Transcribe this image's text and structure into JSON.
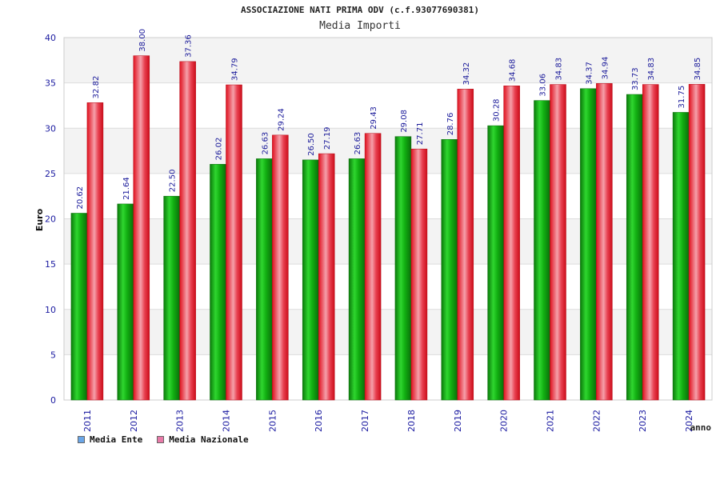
{
  "chart_data": {
    "type": "bar",
    "title": "ASSOCIAZIONE NATI PRIMA ODV (c.f.93077690381)",
    "subtitle": "Media Importi",
    "ylabel": "Euro",
    "xlabel": "anno",
    "ylim": [
      0,
      40
    ],
    "yticks": [
      0,
      5,
      10,
      15,
      20,
      25,
      30,
      35,
      40
    ],
    "categories": [
      "2011",
      "2012",
      "2013",
      "2014",
      "2015",
      "2016",
      "2017",
      "2018",
      "2019",
      "2020",
      "2021",
      "2022",
      "2023",
      "2024"
    ],
    "series": [
      {
        "name": "Media Ente",
        "color": "#19b319",
        "legend_color": "#6aa6e8",
        "values": [
          20.62,
          21.64,
          22.5,
          26.02,
          26.63,
          26.5,
          26.63,
          29.08,
          28.76,
          30.28,
          33.06,
          34.37,
          33.73,
          31.75
        ],
        "labels": [
          "20.62",
          "21.64",
          "22.50",
          "26.02",
          "26.63",
          "26.50",
          "26.63",
          "29.08",
          "28.76",
          "30.28",
          "33.06",
          "34.37",
          "33.73",
          "31.75"
        ]
      },
      {
        "name": "Media Nazionale",
        "color": "#e8192a",
        "legend_color": "#e87aa8",
        "values": [
          32.82,
          38.0,
          37.36,
          34.79,
          29.24,
          27.19,
          29.43,
          27.71,
          34.32,
          34.68,
          34.83,
          34.94,
          34.83,
          34.85
        ],
        "labels": [
          "32.82",
          "38.00",
          "37.36",
          "34.79",
          "29.24",
          "27.19",
          "29.43",
          "27.71",
          "34.32",
          "34.68",
          "34.83",
          "34.94",
          "34.83",
          "34.85"
        ]
      }
    ],
    "grid": true,
    "legend_position": "bottom-left"
  }
}
